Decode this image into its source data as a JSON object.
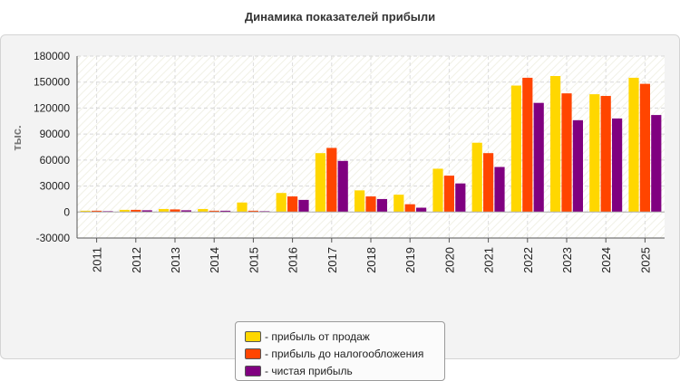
{
  "chart_data": {
    "type": "bar",
    "title": "Динамика показателей прибыли",
    "ylabel": "тыс.",
    "xlabel": "",
    "ylim": [
      -30000,
      180000
    ],
    "yticks": [
      "180000",
      "150000",
      "120000",
      "90000",
      "60000",
      "30000",
      "0",
      "-30000"
    ],
    "categories": [
      "2011",
      "2012",
      "2013",
      "2014",
      "2015",
      "2016",
      "2017",
      "2018",
      "2019",
      "2020",
      "2021",
      "2022",
      "2023",
      "2024",
      "2025"
    ],
    "series": [
      {
        "name": "- прибыль от продаж",
        "color": "#ffd700",
        "values": [
          1500,
          2500,
          3500,
          3500,
          11000,
          22000,
          68000,
          25000,
          20000,
          50000,
          80000,
          146000,
          157000,
          136000,
          155000
        ]
      },
      {
        "name": "- прибыль до налогообложения",
        "color": "#ff4500",
        "values": [
          1500,
          2500,
          3000,
          1500,
          1500,
          18000,
          74000,
          18000,
          9000,
          42000,
          68000,
          155000,
          137000,
          134000,
          148000
        ]
      },
      {
        "name": "- чистая прибыль",
        "color": "#800080",
        "values": [
          1000,
          2000,
          2000,
          1500,
          1000,
          14000,
          59000,
          15000,
          5000,
          33000,
          52000,
          126000,
          106000,
          108000,
          112000
        ]
      }
    ],
    "grid": true,
    "legend_position": "bottom"
  }
}
